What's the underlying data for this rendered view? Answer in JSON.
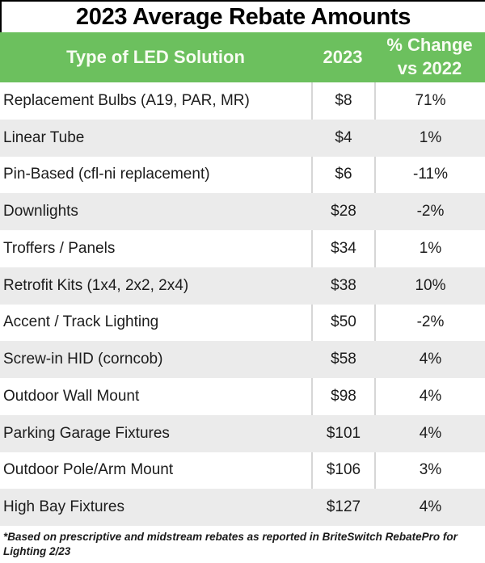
{
  "title": "2023 Average Rebate Amounts",
  "header": {
    "col1": "Type of LED Solution",
    "col2": "2023",
    "col3_line1": "% Change",
    "col3_line2": "vs 2022"
  },
  "rows": [
    {
      "type": "Replacement Bulbs (A19, PAR, MR)",
      "amount": "$8",
      "change": "71%"
    },
    {
      "type": "Linear Tube",
      "amount": "$4",
      "change": "1%"
    },
    {
      "type": "Pin-Based (cfl-ni replacement)",
      "amount": "$6",
      "change": "-11%"
    },
    {
      "type": "Downlights",
      "amount": "$28",
      "change": "-2%"
    },
    {
      "type": "Troffers / Panels",
      "amount": "$34",
      "change": "1%"
    },
    {
      "type": "Retrofit Kits (1x4, 2x2, 2x4)",
      "amount": "$38",
      "change": "10%"
    },
    {
      "type": "Accent / Track Lighting",
      "amount": "$50",
      "change": "-2%"
    },
    {
      "type": "Screw-in HID (corncob)",
      "amount": "$58",
      "change": "4%"
    },
    {
      "type": "Outdoor Wall Mount",
      "amount": "$98",
      "change": "4%"
    },
    {
      "type": "Parking Garage Fixtures",
      "amount": "$101",
      "change": "4%"
    },
    {
      "type": "Outdoor Pole/Arm Mount",
      "amount": "$106",
      "change": "3%"
    },
    {
      "type": "High Bay Fixtures",
      "amount": "$127",
      "change": "4%"
    }
  ],
  "footnote": {
    "line1": "*Based on prescriptive and midstream rebates as reported in BriteSwitch RebatePro for",
    "line2": "Lighting 2/23"
  },
  "colors": {
    "header_green": "#6cc05e",
    "header_text": "#f8fcf2",
    "alt_row_gray": "#ebebeb",
    "divider_gray": "#d6d6d6",
    "title_text": "#000000",
    "row_text": "#1c1c1c"
  },
  "chart_data": {
    "type": "table",
    "title": "2023 Average Rebate Amounts",
    "columns": [
      "Type of LED Solution",
      "2023",
      "% Change vs 2022"
    ],
    "rows": [
      [
        "Replacement Bulbs (A19, PAR, MR)",
        "$8",
        "71%"
      ],
      [
        "Linear Tube",
        "$4",
        "1%"
      ],
      [
        "Pin-Based (cfl-ni replacement)",
        "$6",
        "-11%"
      ],
      [
        "Downlights",
        "$28",
        "-2%"
      ],
      [
        "Troffers / Panels",
        "$34",
        "1%"
      ],
      [
        "Retrofit Kits (1x4, 2x2, 2x4)",
        "$38",
        "10%"
      ],
      [
        "Accent / Track Lighting",
        "$50",
        "-2%"
      ],
      [
        "Screw-in HID (corncob)",
        "$58",
        "4%"
      ],
      [
        "Outdoor Wall Mount",
        "$98",
        "4%"
      ],
      [
        "Parking Garage Fixtures",
        "$101",
        "4%"
      ],
      [
        "Outdoor Pole/Arm Mount",
        "$106",
        "3%"
      ],
      [
        "High Bay Fixtures",
        "$127",
        "4%"
      ]
    ],
    "footnote": "*Based on prescriptive and midstream rebates as reported in BriteSwitch RebatePro for Lighting 2/23"
  }
}
